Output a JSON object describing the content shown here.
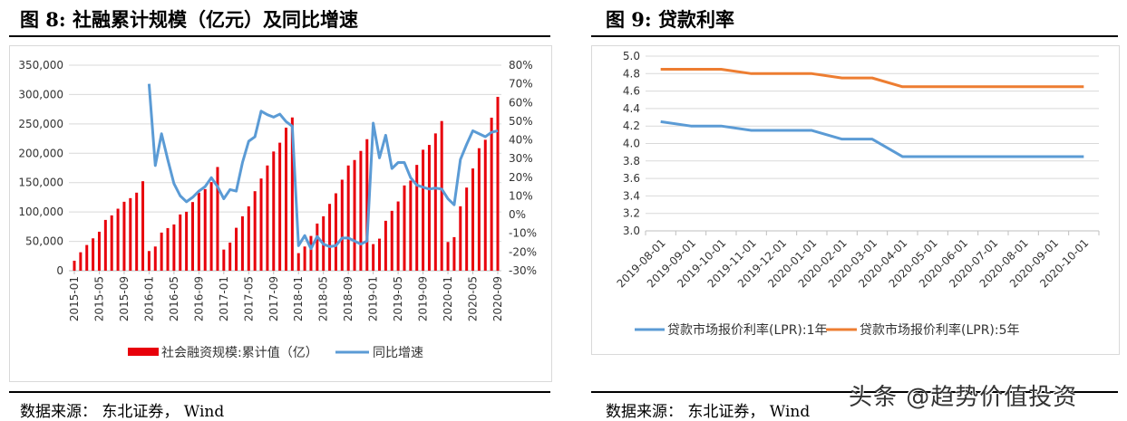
{
  "left": {
    "title": "图  8:  社融累计规模（亿元）及同比增速",
    "source": "数据来源：  东北证券，  Wind"
  },
  "right": {
    "title": "图  9:  贷款利率",
    "source": "数据来源：  东北证券，  Wind"
  },
  "watermark": "头条 @趋势价值投资",
  "colors": {
    "bar": "#E8000B",
    "growth": "#5B9BD5",
    "lpr1": "#5B9BD5",
    "lpr5": "#ED7D31"
  },
  "chart_data": [
    {
      "type": "bar+line",
      "start_month": "2015-01",
      "end_month": "2020-09",
      "x_tick_labels": [
        "2015-01",
        "2015-05",
        "2015-09",
        "2016-01",
        "2016-05",
        "2016-09",
        "2017-01",
        "2017-05",
        "2017-09",
        "2018-01",
        "2018-05",
        "2018-09",
        "2019-01",
        "2019-05",
        "2019-09",
        "2020-01",
        "2020-05",
        "2020-09"
      ],
      "y_left": {
        "ylim": [
          0,
          350000
        ],
        "ticks": [
          "0",
          "50,000",
          "100,000",
          "150,000",
          "200,000",
          "250,000",
          "300,000",
          "350,000"
        ]
      },
      "y_right": {
        "ylim": [
          -30,
          80
        ],
        "ticks": [
          "-30%",
          "-20%",
          "-10%",
          "0%",
          "10%",
          "20%",
          "30%",
          "40%",
          "50%",
          "60%",
          "70%",
          "80%"
        ]
      },
      "grid": true,
      "legend_position": "bottom",
      "series": [
        {
          "name": "社会融资规模:累计值（亿）",
          "type": "bar",
          "axis": "left",
          "values": [
            17000,
            31400,
            43800,
            55100,
            66400,
            86500,
            94200,
            105600,
            117400,
            123600,
            132900,
            152400,
            33500,
            41200,
            64900,
            72600,
            78800,
            95800,
            100400,
            116900,
            132900,
            139000,
            150900,
            176600,
            36000,
            47900,
            73100,
            92700,
            109700,
            135400,
            157000,
            179200,
            203000,
            218000,
            243600,
            261000,
            29900,
            41200,
            59200,
            80300,
            92700,
            113800,
            131800,
            155000,
            179200,
            188500,
            204000,
            224000,
            45300,
            54600,
            85000,
            102000,
            117900,
            145200,
            153500,
            180200,
            206000,
            214200,
            233800,
            254900,
            48900,
            57200,
            109700,
            141600,
            174100,
            208600,
            223000,
            260600,
            296100
          ]
        },
        {
          "name": "同比增速",
          "type": "line",
          "axis": "right",
          "start_index": 12,
          "values": [
            70,
            26.3,
            43.3,
            29.5,
            16.6,
            10.1,
            6.9,
            9.3,
            12.6,
            15,
            19.8,
            15,
            8.5,
            13.4,
            12.6,
            27.9,
            39.3,
            41.7,
            55.4,
            53.5,
            52.2,
            53.8,
            49.8,
            47.3,
            -16.6,
            -11.2,
            -18.2,
            -11.7,
            -15.8,
            -17.1,
            -16.6,
            -12.5,
            -12.5,
            -14.1,
            -15.8,
            -14.1,
            49,
            30.4,
            42.5,
            24.7,
            27.9,
            27.9,
            19.8,
            15.8,
            14.7,
            13.7,
            14.2,
            13.7,
            8.5,
            5.3,
            29.5,
            37.6,
            44.9,
            43.3,
            41.7,
            44.1,
            44.9
          ]
        }
      ]
    },
    {
      "type": "line",
      "categories": [
        "2019-08-01",
        "2019-09-01",
        "2019-10-01",
        "2019-11-01",
        "2019-12-01",
        "2020-01-01",
        "2020-02-01",
        "2020-03-01",
        "2020-04-01",
        "2020-05-01",
        "2020-06-01",
        "2020-07-01",
        "2020-08-01",
        "2020-09-01",
        "2020-10-01"
      ],
      "ylim": [
        3.0,
        5.0
      ],
      "y_ticks": [
        "3.0",
        "3.2",
        "3.4",
        "3.6",
        "3.8",
        "4.0",
        "4.2",
        "4.4",
        "4.6",
        "4.8",
        "5.0"
      ],
      "grid": true,
      "legend_position": "bottom",
      "series": [
        {
          "name": "贷款市场报价利率(LPR):1年",
          "values": [
            4.25,
            4.2,
            4.2,
            4.15,
            4.15,
            4.15,
            4.05,
            4.05,
            3.85,
            3.85,
            3.85,
            3.85,
            3.85,
            3.85,
            3.85
          ]
        },
        {
          "name": "贷款市场报价利率(LPR):5年",
          "values": [
            4.85,
            4.85,
            4.85,
            4.8,
            4.8,
            4.8,
            4.75,
            4.75,
            4.65,
            4.65,
            4.65,
            4.65,
            4.65,
            4.65,
            4.65
          ]
        }
      ]
    }
  ]
}
